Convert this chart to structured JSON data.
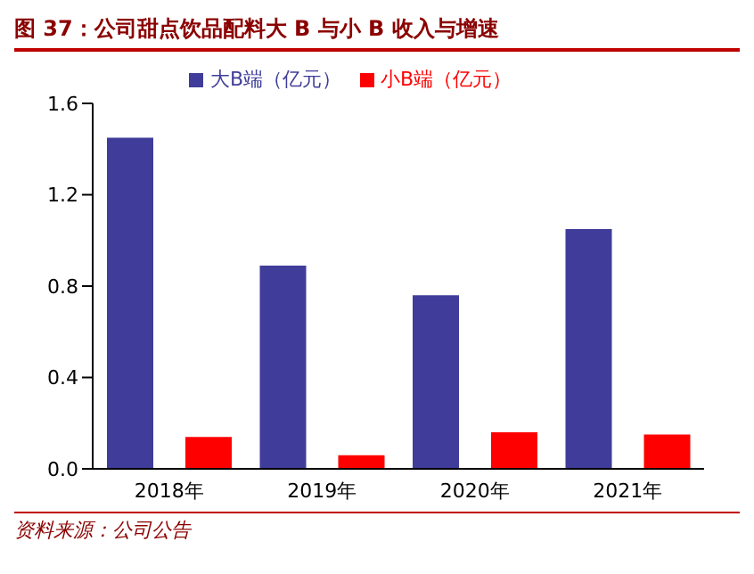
{
  "chart_data": {
    "type": "bar",
    "title": "图 37：公司甜点饮品配料大 B 与小 B 收入与增速",
    "categories": [
      "2018年",
      "2019年",
      "2020年",
      "2021年"
    ],
    "series": [
      {
        "name": "大B端（亿元）",
        "color": "#3f3d99",
        "values": [
          1.45,
          0.89,
          0.76,
          1.05
        ]
      },
      {
        "name": "小B端（亿元）",
        "color": "#ff0000",
        "values": [
          0.14,
          0.06,
          0.16,
          0.15
        ]
      }
    ],
    "ylim": [
      0,
      1.6
    ],
    "yticks": [
      {
        "value": 0,
        "label": "0.0"
      },
      {
        "value": 0.4,
        "label": "0.4"
      },
      {
        "value": 0.8,
        "label": "0.8"
      },
      {
        "value": 1.2,
        "label": "1.2"
      },
      {
        "value": 1.6,
        "label": "1.6"
      }
    ],
    "grid": false,
    "legend": "top",
    "annotations": [
      "资料来源：公司公告"
    ]
  }
}
